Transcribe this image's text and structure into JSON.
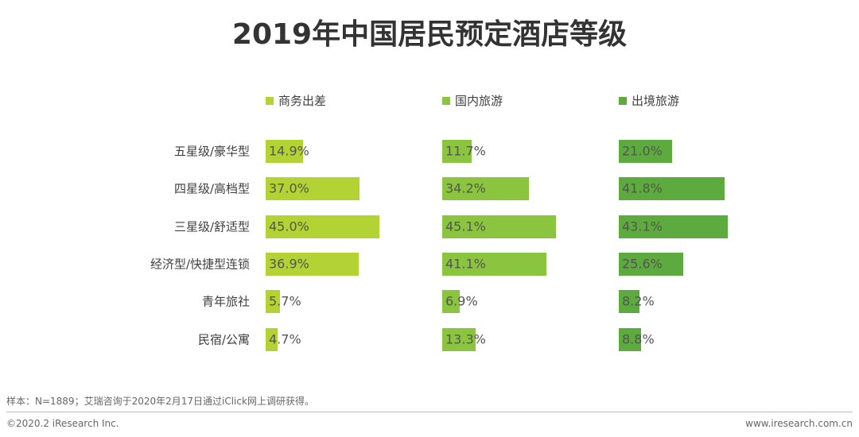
{
  "chart_data": {
    "type": "bar",
    "orientation": "horizontal",
    "title": "2019年中国居民预定酒店等级",
    "categories": [
      "五星级/豪华型",
      "四星级/高档型",
      "三星级/舒适型",
      "经济型/快捷型连锁",
      "青年旅社",
      "民宿/公寓"
    ],
    "series": [
      {
        "name": "商务出差",
        "color": "#b3d233",
        "values": [
          14.9,
          37.0,
          45.0,
          36.9,
          5.7,
          4.7
        ]
      },
      {
        "name": "国内旅游",
        "color": "#8bc43f",
        "values": [
          11.7,
          34.2,
          45.1,
          41.1,
          6.9,
          13.3
        ]
      },
      {
        "name": "出境旅游",
        "color": "#5dab3e",
        "values": [
          21.0,
          41.8,
          43.1,
          25.6,
          8.2,
          8.8
        ]
      }
    ],
    "value_suffix": "%",
    "xlim": [
      0,
      50
    ],
    "legend": "top"
  },
  "footer": {
    "note": "样本：N=1889；艾瑞咨询于2020年2月17日通过iClick网上调研获得。",
    "copyright": "©2020.2 iResearch Inc.",
    "site": "www.iresearch.com.cn"
  }
}
